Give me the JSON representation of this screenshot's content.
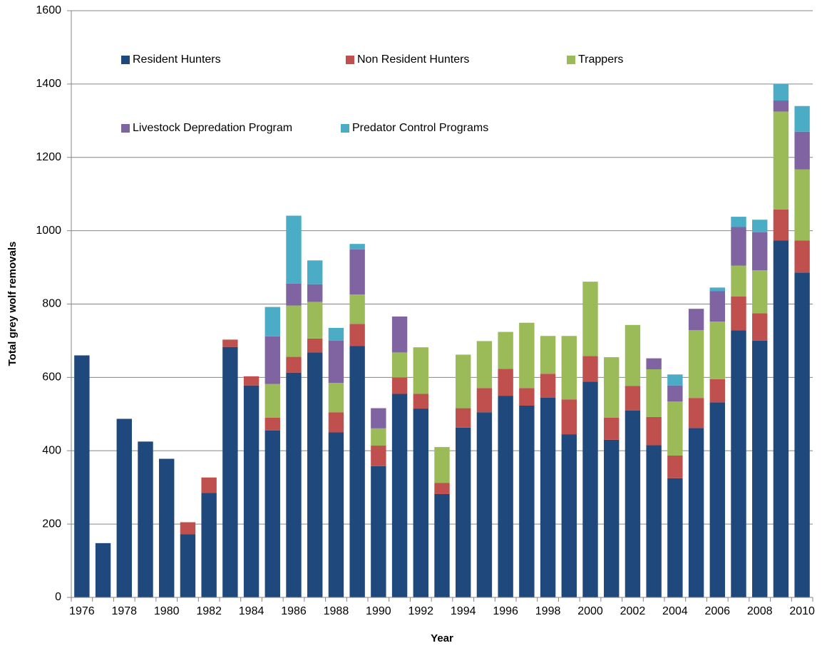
{
  "chart_data": {
    "type": "stacked_bar",
    "x_label": "Year",
    "y_label": "Total grey wolf removals",
    "categories": [
      "1976",
      null,
      "1978",
      null,
      "1980",
      null,
      "1982",
      null,
      "1984",
      null,
      "1986",
      null,
      "1988",
      null,
      "1990",
      null,
      "1992",
      null,
      "1994",
      null,
      "1996",
      null,
      "1998",
      null,
      "2000",
      null,
      "2002",
      null,
      "2004",
      null,
      "2006",
      null,
      "2008",
      null,
      "2010"
    ],
    "series": [
      {
        "name": "Resident Hunters",
        "color": "#1f497d",
        "values": [
          660,
          148,
          487,
          425,
          378,
          172,
          285,
          683,
          578,
          455,
          613,
          668,
          450,
          686,
          358,
          555,
          515,
          282,
          463,
          505,
          550,
          523,
          545,
          445,
          588,
          430,
          510,
          415,
          325,
          462,
          532,
          728,
          700,
          973,
          886
        ]
      },
      {
        "name": "Non Resident Hunters",
        "color": "#c0504d",
        "values": [
          0,
          0,
          0,
          0,
          0,
          33,
          42,
          20,
          25,
          35,
          43,
          38,
          55,
          60,
          56,
          45,
          40,
          30,
          53,
          66,
          73,
          48,
          65,
          95,
          70,
          60,
          67,
          77,
          62,
          82,
          63,
          93,
          75,
          85,
          87
        ]
      },
      {
        "name": "Trappers",
        "color": "#9bbb59",
        "values": [
          0,
          0,
          0,
          0,
          0,
          0,
          0,
          0,
          0,
          92,
          140,
          100,
          80,
          80,
          47,
          68,
          127,
          98,
          146,
          128,
          101,
          178,
          103,
          173,
          203,
          165,
          166,
          130,
          147,
          185,
          157,
          84,
          117,
          267,
          194
        ]
      },
      {
        "name": "Livestock Depredation Program",
        "color": "#8064a2",
        "values": [
          0,
          0,
          0,
          0,
          0,
          0,
          0,
          0,
          0,
          130,
          60,
          48,
          115,
          123,
          55,
          98,
          0,
          0,
          0,
          0,
          0,
          0,
          0,
          0,
          0,
          0,
          0,
          30,
          44,
          58,
          83,
          105,
          104,
          30,
          103
        ]
      },
      {
        "name": "Predator Control Programs",
        "color": "#4bacc6",
        "values": [
          0,
          0,
          0,
          0,
          0,
          0,
          0,
          0,
          0,
          80,
          185,
          65,
          35,
          15,
          0,
          0,
          0,
          0,
          0,
          0,
          0,
          0,
          0,
          0,
          0,
          0,
          0,
          0,
          30,
          0,
          10,
          28,
          34,
          45,
          70
        ]
      }
    ],
    "ylim": [
      0,
      1600
    ],
    "yticks": [
      0,
      200,
      400,
      600,
      800,
      1000,
      1200,
      1400,
      1600
    ],
    "grid": true
  }
}
